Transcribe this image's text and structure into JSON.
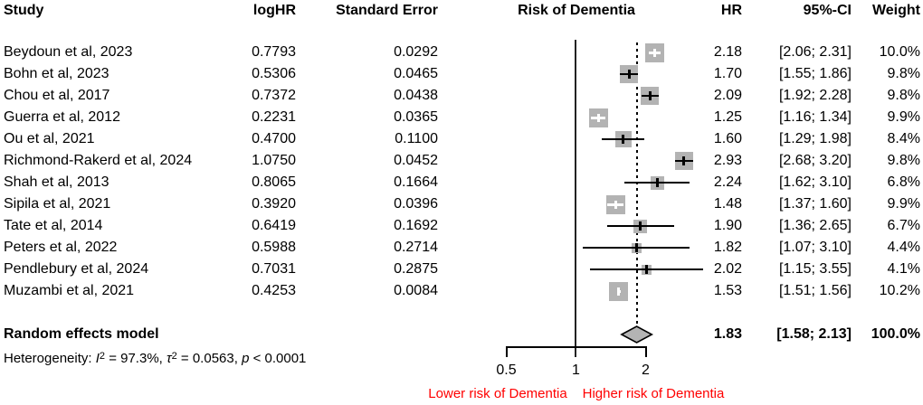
{
  "header": {
    "study": "Study",
    "loghr": "logHR",
    "se": "Standard Error",
    "plot_title": "Risk of Dementia",
    "hr": "HR",
    "ci": "95%-CI",
    "weight": "Weight"
  },
  "chart_data": {
    "type": "scatter",
    "subtype": "forest-plot",
    "title": "Risk of Dementia",
    "x_scale": "log",
    "x_ticks": [
      0.5,
      1,
      2
    ],
    "x_tick_labels": [
      "0.5",
      "1",
      "2"
    ],
    "ref_line": 1,
    "pooled_estimate": 1.83,
    "studies": [
      {
        "study": "Beydoun et al, 2023",
        "loghr": "0.7793",
        "se": "0.0292",
        "hr": 2.18,
        "ci_low": 2.06,
        "ci_high": 2.31,
        "hr_text": "2.18",
        "ci_text": "[2.06; 2.31]",
        "weight": 10.0,
        "weight_text": "10.0%",
        "ci_inside_square": true
      },
      {
        "study": "Bohn et al, 2023",
        "loghr": "0.5306",
        "se": "0.0465",
        "hr": 1.7,
        "ci_low": 1.55,
        "ci_high": 1.86,
        "hr_text": "1.70",
        "ci_text": "[1.55; 1.86]",
        "weight": 9.8,
        "weight_text": "9.8%",
        "ci_inside_square": false
      },
      {
        "study": "Chou et al, 2017",
        "loghr": "0.7372",
        "se": "0.0438",
        "hr": 2.09,
        "ci_low": 1.92,
        "ci_high": 2.28,
        "hr_text": "2.09",
        "ci_text": "[1.92; 2.28]",
        "weight": 9.8,
        "weight_text": "9.8%",
        "ci_inside_square": false
      },
      {
        "study": "Guerra et al, 2012",
        "loghr": "0.2231",
        "se": "0.0365",
        "hr": 1.25,
        "ci_low": 1.16,
        "ci_high": 1.34,
        "hr_text": "1.25",
        "ci_text": "[1.16; 1.34]",
        "weight": 9.9,
        "weight_text": "9.9%",
        "ci_inside_square": true
      },
      {
        "study": "Ou et al, 2021",
        "loghr": "0.4700",
        "se": "0.1100",
        "hr": 1.6,
        "ci_low": 1.29,
        "ci_high": 1.98,
        "hr_text": "1.60",
        "ci_text": "[1.29; 1.98]",
        "weight": 8.4,
        "weight_text": "8.4%",
        "ci_inside_square": false
      },
      {
        "study": "Richmond-Rakerd et al, 2024",
        "loghr": "1.0750",
        "se": "0.0452",
        "hr": 2.93,
        "ci_low": 2.68,
        "ci_high": 3.2,
        "hr_text": "2.93",
        "ci_text": "[2.68; 3.20]",
        "weight": 9.8,
        "weight_text": "9.8%",
        "ci_inside_square": false
      },
      {
        "study": "Shah et al, 2013",
        "loghr": "0.8065",
        "se": "0.1664",
        "hr": 2.24,
        "ci_low": 1.62,
        "ci_high": 3.1,
        "hr_text": "2.24",
        "ci_text": "[1.62; 3.10]",
        "weight": 6.8,
        "weight_text": "6.8%",
        "ci_inside_square": false
      },
      {
        "study": "Sipila et al, 2021",
        "loghr": "0.3920",
        "se": "0.0396",
        "hr": 1.48,
        "ci_low": 1.37,
        "ci_high": 1.6,
        "hr_text": "1.48",
        "ci_text": "[1.37; 1.60]",
        "weight": 9.9,
        "weight_text": "9.9%",
        "ci_inside_square": true
      },
      {
        "study": "Tate et al, 2014",
        "loghr": "0.6419",
        "se": "0.1692",
        "hr": 1.9,
        "ci_low": 1.36,
        "ci_high": 2.65,
        "hr_text": "1.90",
        "ci_text": "[1.36; 2.65]",
        "weight": 6.7,
        "weight_text": "6.7%",
        "ci_inside_square": false
      },
      {
        "study": "Peters et al, 2022",
        "loghr": "0.5988",
        "se": "0.2714",
        "hr": 1.82,
        "ci_low": 1.07,
        "ci_high": 3.1,
        "hr_text": "1.82",
        "ci_text": "[1.07; 3.10]",
        "weight": 4.4,
        "weight_text": "4.4%",
        "ci_inside_square": false
      },
      {
        "study": "Pendlebury et al, 2024",
        "loghr": "0.7031",
        "se": "0.2875",
        "hr": 2.02,
        "ci_low": 1.15,
        "ci_high": 3.55,
        "hr_text": "2.02",
        "ci_text": "[1.15; 3.55]",
        "weight": 4.1,
        "weight_text": "4.1%",
        "ci_inside_square": false
      },
      {
        "study": "Muzambi et al, 2021",
        "loghr": "0.4253",
        "se": "0.0084",
        "hr": 1.53,
        "ci_low": 1.51,
        "ci_high": 1.56,
        "hr_text": "1.53",
        "ci_text": "[1.51; 1.56]",
        "weight": 10.2,
        "weight_text": "10.2%",
        "ci_inside_square": true
      }
    ],
    "summary": {
      "label": "Random effects model",
      "hr": 1.83,
      "ci_low": 1.58,
      "ci_high": 2.13,
      "hr_text": "1.83",
      "ci_text": "[1.58; 2.13]",
      "weight_text": "100.0%"
    },
    "heterogeneity": {
      "parts": [
        {
          "t": "Heterogeneity: "
        },
        {
          "t": "I",
          "style": "ital"
        },
        {
          "t": "2",
          "style": "sup"
        },
        {
          "t": " = 97.3%, "
        },
        {
          "t": "τ",
          "style": "ital"
        },
        {
          "t": "2",
          "style": "sup"
        },
        {
          "t": " = 0.0563, "
        },
        {
          "t": "p",
          "style": "ital"
        },
        {
          "t": " < 0.0001"
        }
      ]
    },
    "axis_captions": {
      "lower": "Lower risk of Dementia",
      "higher": "Higher risk of Dementia"
    },
    "colors": {
      "square": "#b3b3b3",
      "marker_line": "#000000",
      "marker_line_inside": "#ffffff",
      "diamond_fill": "#b4b4b4",
      "diamond_stroke": "#000000",
      "ref_line": "#222222",
      "dashed_line": "#000000",
      "caption_red": "#ff0000",
      "text": "#000000"
    },
    "legend": null,
    "grid": false
  }
}
